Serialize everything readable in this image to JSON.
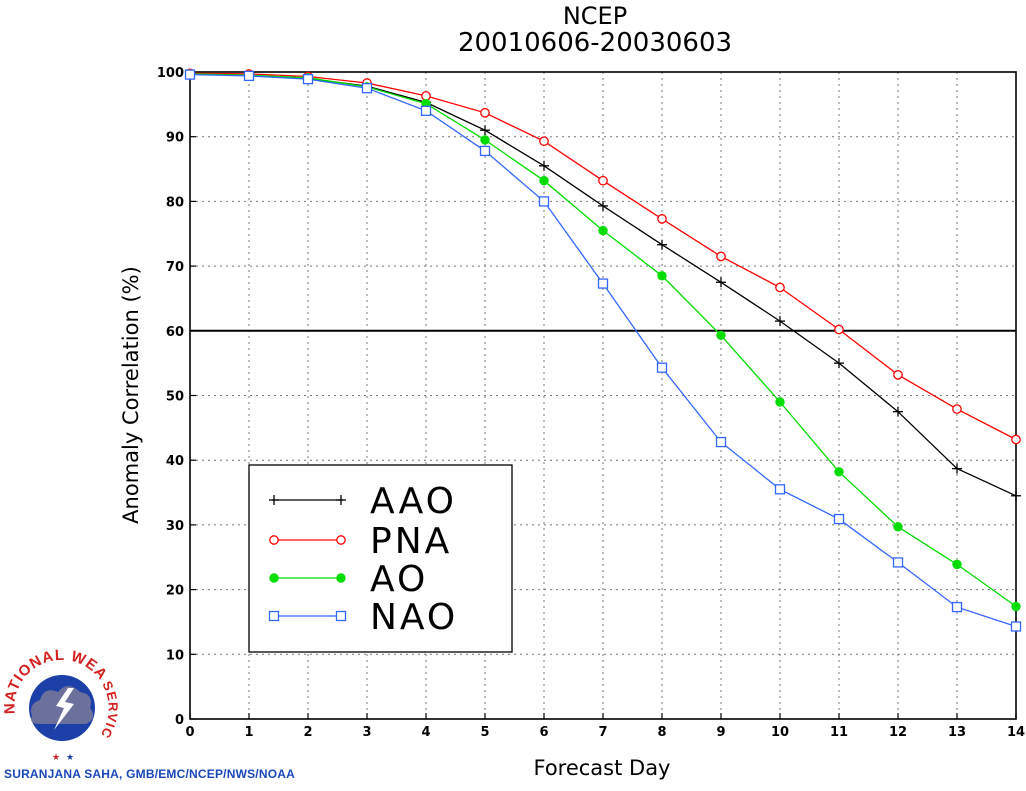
{
  "chart_data": {
    "type": "line",
    "title": "NCEP",
    "subtitle": "20010606-20030603",
    "xlabel": "Forecast Day",
    "ylabel": "Anomaly Correlation (%)",
    "xlim": [
      0,
      14
    ],
    "ylim": [
      0,
      100
    ],
    "x_ticks": [
      "0",
      "1",
      "2",
      "3",
      "4",
      "5",
      "6",
      "7",
      "8",
      "9",
      "10",
      "11",
      "12",
      "13",
      "14"
    ],
    "y_ticks": [
      "0",
      "10",
      "20",
      "30",
      "40",
      "50",
      "60",
      "70",
      "80",
      "90",
      "100"
    ],
    "grid": true,
    "reference_line": 60,
    "legend_position": "lower-left",
    "x": [
      0,
      1,
      2,
      3,
      4,
      5,
      6,
      7,
      8,
      9,
      10,
      11,
      12,
      13,
      14
    ],
    "series": [
      {
        "name": "AAO",
        "color": "#000000",
        "marker": "plus",
        "values": [
          99.7,
          99.5,
          99.0,
          97.8,
          95.3,
          91.0,
          85.5,
          79.3,
          73.3,
          67.5,
          61.5,
          55.0,
          47.5,
          38.7,
          34.5
        ]
      },
      {
        "name": "PNA",
        "color": "#ff0000",
        "marker": "open-circle",
        "values": [
          99.8,
          99.7,
          99.3,
          98.3,
          96.3,
          93.7,
          89.3,
          83.2,
          77.3,
          71.5,
          66.7,
          60.2,
          53.2,
          47.9,
          43.2
        ]
      },
      {
        "name": "AO",
        "color": "#00dd00",
        "marker": "filled-circle",
        "values": [
          99.7,
          99.5,
          99.1,
          97.7,
          95.1,
          89.5,
          83.2,
          75.5,
          68.5,
          59.3,
          49.0,
          38.2,
          29.7,
          23.9,
          17.4
        ]
      },
      {
        "name": "NAO",
        "color": "#3366ff",
        "marker": "open-square",
        "values": [
          99.6,
          99.4,
          98.9,
          97.5,
          94.0,
          87.8,
          80.0,
          67.3,
          54.3,
          42.8,
          35.5,
          30.9,
          24.2,
          17.3,
          14.3
        ]
      }
    ]
  },
  "logo": {
    "text_top": "NATIONAL WEATHER",
    "text_right": "SERVICE",
    "colors": {
      "ring": "#ffffff",
      "text": "#d42020",
      "globe": "#1c3fa8",
      "cloud": "#7a7a9a"
    }
  },
  "credit": "SURANJANA SAHA, GMB/EMC/NCEP/NWS/NOAA"
}
